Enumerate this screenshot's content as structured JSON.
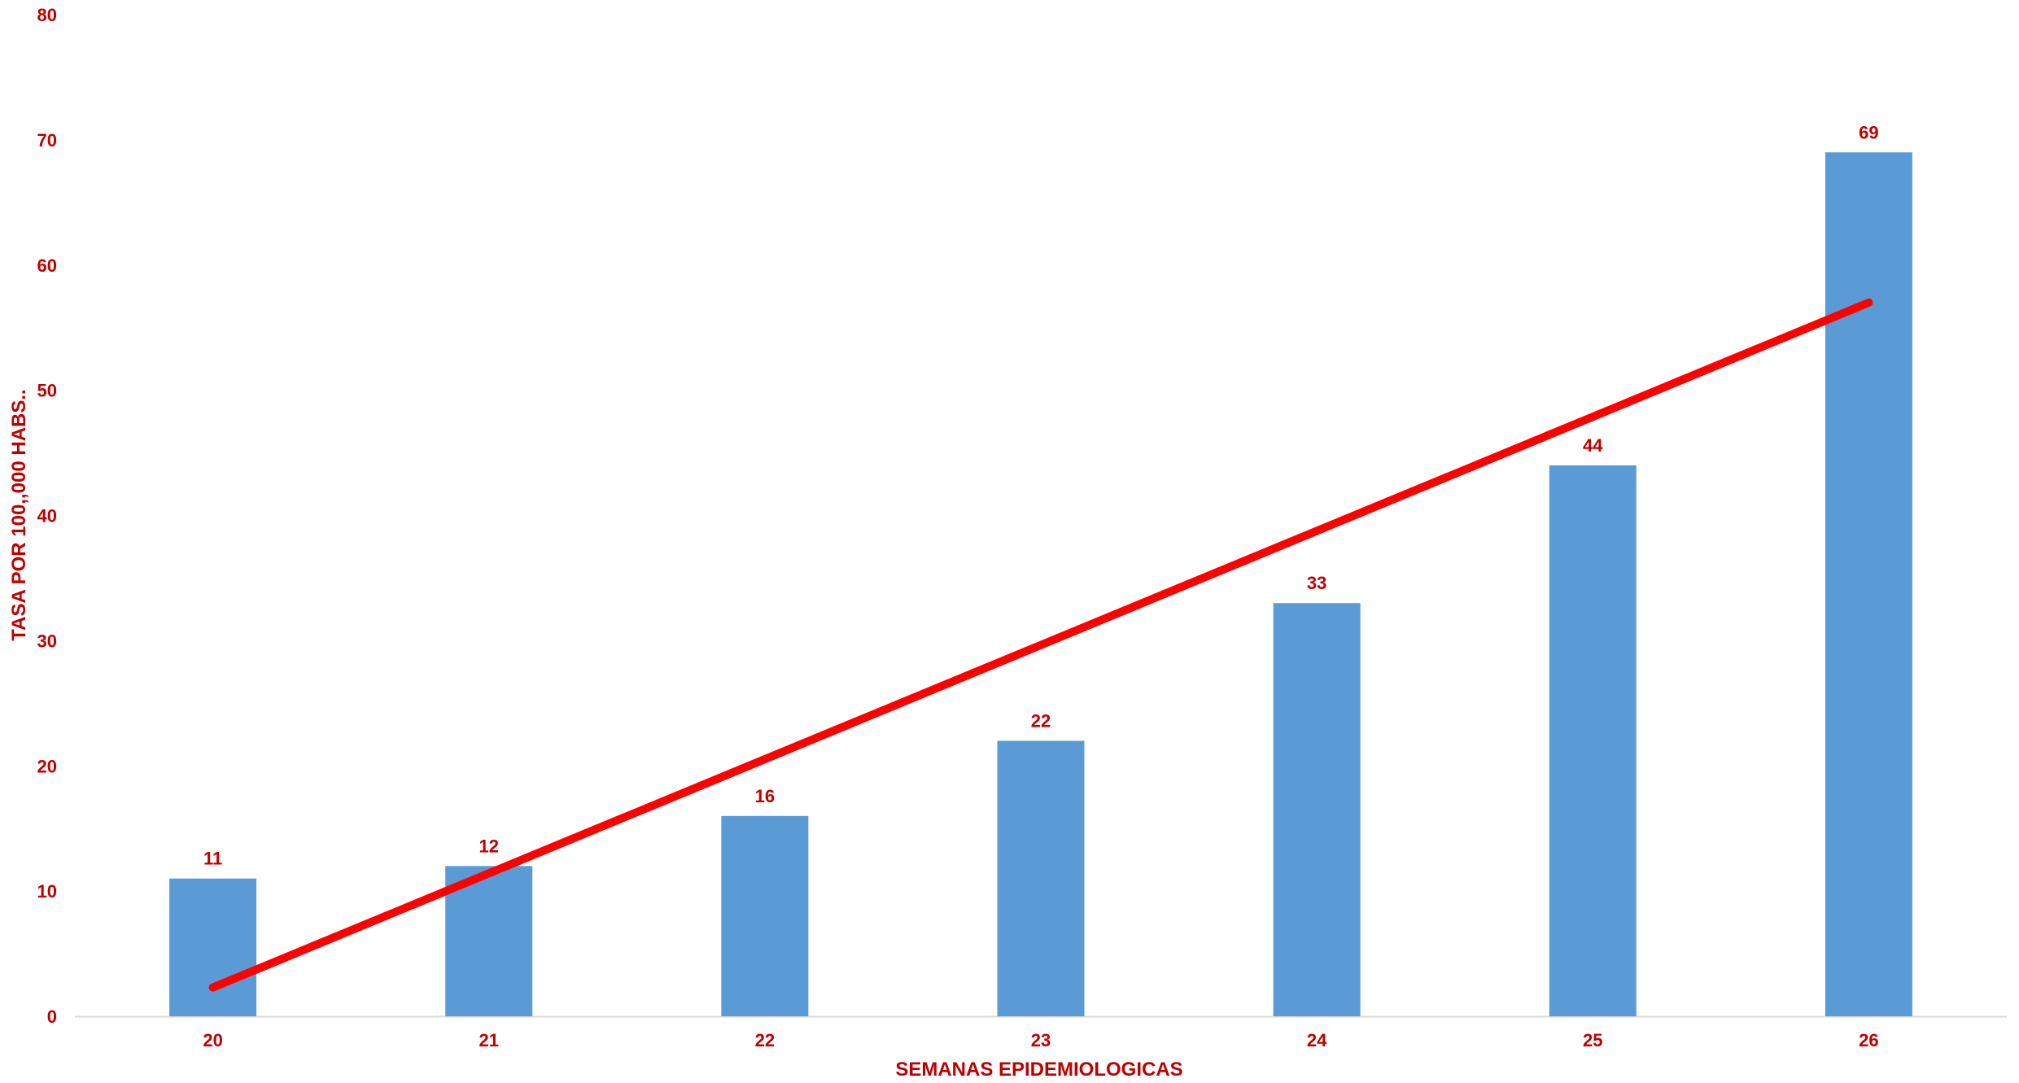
{
  "chart_data": {
    "type": "bar",
    "title": "",
    "xlabel": "SEMANAS EPIDEMIOLOGICAS",
    "ylabel": "TASA POR 100,,000 HABS..",
    "categories": [
      "20",
      "21",
      "22",
      "23",
      "24",
      "25",
      "26"
    ],
    "series": [
      {
        "values": [
          11,
          12,
          16,
          22,
          33,
          44,
          69
        ]
      }
    ],
    "trendline": {
      "type": "linear",
      "start": 2.3,
      "end": 57
    },
    "ylim": [
      0,
      80
    ],
    "yticks": [
      "0",
      "10",
      "20",
      "30",
      "40",
      "50",
      "60",
      "70",
      "80"
    ],
    "grid": false,
    "legend": "none",
    "colors": {
      "bar": "#5B9BD5",
      "trendline": "#FF0000",
      "text": "#C00000",
      "axis": "#D9D9D9"
    }
  }
}
